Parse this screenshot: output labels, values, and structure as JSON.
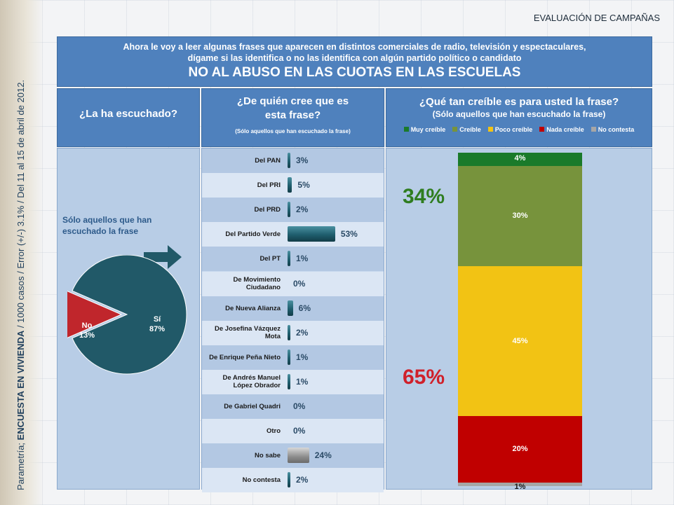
{
  "top_label": "EVALUACIÓN DE CAMPAÑAS",
  "side_text": {
    "prefix": "Parametría; ",
    "bold": "ENCUESTA EN VIVIENDA",
    "suffix": " / 1000 casos / Error (+/-) 3.1% / Del 11 al 15 de abril de 2012."
  },
  "header": {
    "question_line1": "Ahora le voy a leer algunas frases que aparecen en distintos comerciales de radio, televisión y espectaculares,",
    "question_line2": "dígame si las identifica o no las identifica con algún partido político o candidato",
    "title": "NO AL ABUSO EN LAS CUOTAS EN LAS ESCUELAS"
  },
  "columns": {
    "c1_title": "¿La ha escuchado?",
    "c2_title_line1": "¿De quién cree que es",
    "c2_title_line2": "esta frase?",
    "c2_note": "(Sólo aquellos que han escuchado la frase)",
    "c3_title": "¿Qué tan creíble es para usted la frase?",
    "c3_note": "(Sólo aquellos que han escuchado la frase)"
  },
  "left_note_line1": "Sólo aquellos que han",
  "left_note_line2": "escuchado la frase",
  "colors": {
    "header_blue": "#4f81bd",
    "pie_si": "#215968",
    "pie_no": "#c0262c",
    "bar_teal": "#1f5e6e",
    "bar_gray": "#8c8c8c",
    "muy_creible": "#1a7a2a",
    "creible": "#77933c",
    "poco_creible": "#f2c314",
    "nada_creible": "#c00000",
    "no_contesta": "#a6a6a6",
    "green_big": "#2f7d20",
    "red_big": "#d0202a"
  },
  "chart_data": [
    {
      "type": "pie",
      "categories": [
        "Sí",
        "No"
      ],
      "values": [
        87,
        13
      ],
      "labels": [
        "Sí\n87%",
        "No\n13%"
      ]
    },
    {
      "type": "bar",
      "categories": [
        "Del PAN",
        "Del PRI",
        "Del PRD",
        "Del Partido Verde",
        "Del PT",
        "De Movimiento Ciudadano",
        "De Nueva Alianza",
        "De Josefina Vázquez Mota",
        "De Enrique Peña Nieto",
        "De Andrés Manuel López Obrador",
        "De Gabriel Quadri",
        "Otro",
        "No sabe",
        "No contesta"
      ],
      "values": [
        3,
        5,
        2,
        53,
        1,
        0,
        6,
        2,
        1,
        1,
        0,
        0,
        24,
        2
      ],
      "value_labels": [
        "3%",
        "5%",
        "2%",
        "53%",
        "1%",
        "0%",
        "6%",
        "2%",
        "1%",
        "1%",
        "0%",
        "0%",
        "24%",
        "2%"
      ]
    },
    {
      "type": "bar",
      "stacked": true,
      "legend": [
        "Muy creíble",
        "Creíble",
        "Poco creíble",
        "Nada creíble",
        "No contesta"
      ],
      "series": [
        {
          "name": "Muy creíble",
          "values": [
            4
          ]
        },
        {
          "name": "Creíble",
          "values": [
            30
          ]
        },
        {
          "name": "Poco creíble",
          "values": [
            45
          ]
        },
        {
          "name": "Nada creíble",
          "values": [
            20
          ]
        },
        {
          "name": "No contesta",
          "values": [
            1
          ]
        }
      ],
      "value_labels": [
        "4%",
        "30%",
        "45%",
        "20%",
        "1%"
      ],
      "totals": {
        "creible_total": "34%",
        "no_creible_total": "65%"
      }
    }
  ]
}
